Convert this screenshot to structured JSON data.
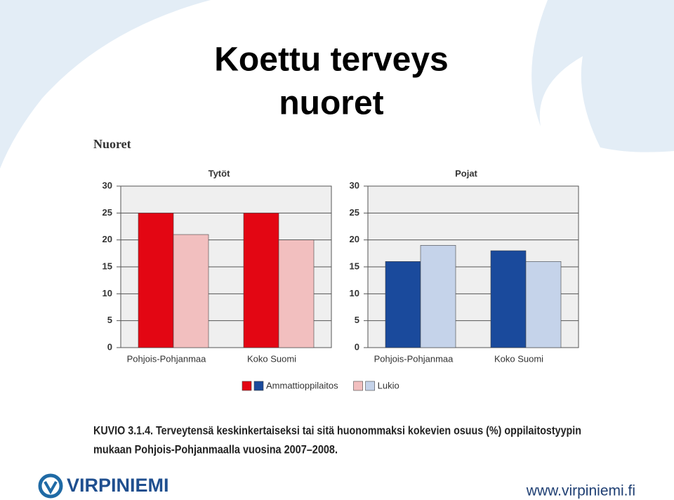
{
  "slide_title": [
    "Koettu terveys",
    "nuoret"
  ],
  "section": "Nuoret",
  "chart_data": [
    {
      "type": "bar",
      "title": "Tytöt",
      "categories": [
        "Pohjois-Pohjanmaa",
        "Koko Suomi"
      ],
      "series": [
        {
          "name": "Ammattioppilaitos",
          "color": "#e30613",
          "values": [
            25,
            25
          ]
        },
        {
          "name": "Lukio",
          "color": "#f2bfbf",
          "values": [
            21,
            20
          ]
        }
      ],
      "ylim": [
        0,
        30
      ],
      "yticks": [
        0,
        5,
        10,
        15,
        20,
        25,
        30
      ],
      "grid": true
    },
    {
      "type": "bar",
      "title": "Pojat",
      "categories": [
        "Pohjois-Pohjanmaa",
        "Koko Suomi"
      ],
      "series": [
        {
          "color": "#1a4a9c",
          "values": [
            16,
            18
          ]
        },
        {
          "color": "#c5d3ea",
          "values": [
            19,
            16
          ]
        }
      ],
      "ylim": [
        0,
        30
      ],
      "yticks": [
        0,
        5,
        10,
        15,
        20,
        25,
        30
      ],
      "grid": true
    }
  ],
  "caption": [
    "KUVIO 3.1.4.   Terveytensä keskinkertaiseksi tai sitä huonommaksi kokevien osuus (%) oppilaitostyypin",
    "mukaan Pohjois-Pohjanmaalla vuosina 2007–2008."
  ],
  "logo": "VIRPINIEMI",
  "url": "www.virpiniemi.fi"
}
